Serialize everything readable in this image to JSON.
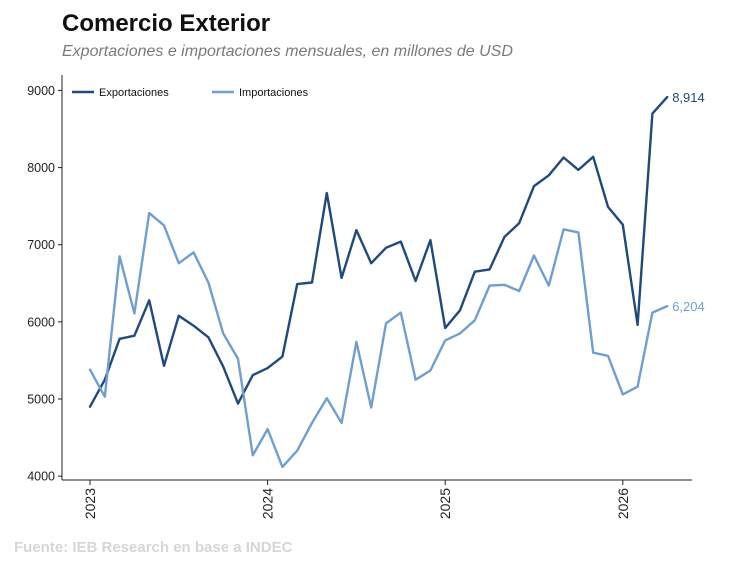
{
  "title": "Comercio Exterior",
  "subtitle": "Exportaciones e importaciones mensuales, en millones de USD",
  "source": "Fuente: IEB Research en base a INDEC",
  "chart_data": {
    "type": "line",
    "x_ticks": [
      "2023",
      "2024",
      "2025",
      "2026"
    ],
    "y_ticks": [
      "4000",
      "5000",
      "6000",
      "7000",
      "8000",
      "9000"
    ],
    "ylim": [
      3950,
      9200
    ],
    "grid": false,
    "legend_position": "top-left",
    "x": [
      "2023-01",
      "2023-02",
      "2023-03",
      "2023-04",
      "2023-05",
      "2023-06",
      "2023-07",
      "2023-08",
      "2023-09",
      "2023-10",
      "2023-11",
      "2023-12",
      "2024-01",
      "2024-02",
      "2024-03",
      "2024-04",
      "2024-05",
      "2024-06",
      "2024-07",
      "2024-08",
      "2024-09",
      "2024-10",
      "2024-11",
      "2024-12",
      "2025-01",
      "2025-02",
      "2025-03",
      "2025-04",
      "2025-05",
      "2025-06",
      "2025-07",
      "2025-08",
      "2025-09",
      "2025-10",
      "2025-11",
      "2025-12",
      "2026-01",
      "2026-02",
      "2026-03",
      "2026-04"
    ],
    "series": [
      {
        "name": "Exportaciones",
        "color": "#1f4a7c",
        "end_label": "8,914",
        "values": [
          4900,
          5250,
          5780,
          5820,
          6280,
          5430,
          6080,
          5950,
          5800,
          5420,
          4940,
          5310,
          5400,
          5550,
          6490,
          6510,
          7670,
          6570,
          7190,
          6760,
          6960,
          7040,
          6530,
          7060,
          5920,
          6150,
          6650,
          6680,
          7100,
          7280,
          7760,
          7900,
          8130,
          7970,
          8140,
          7490,
          7260,
          5960,
          8700,
          8914
        ]
      },
      {
        "name": "Importaciones",
        "color": "#6f9fd1",
        "end_label": "6,204",
        "values": [
          5380,
          5030,
          6850,
          6110,
          7410,
          7250,
          6760,
          6900,
          6510,
          5850,
          5520,
          4270,
          4610,
          4120,
          4330,
          4690,
          5010,
          4690,
          5740,
          4890,
          5980,
          6120,
          5250,
          5370,
          5760,
          5850,
          6020,
          6470,
          6480,
          6400,
          6860,
          6470,
          7200,
          7160,
          5600,
          5560,
          5060,
          5160,
          6120,
          6204
        ]
      }
    ]
  }
}
